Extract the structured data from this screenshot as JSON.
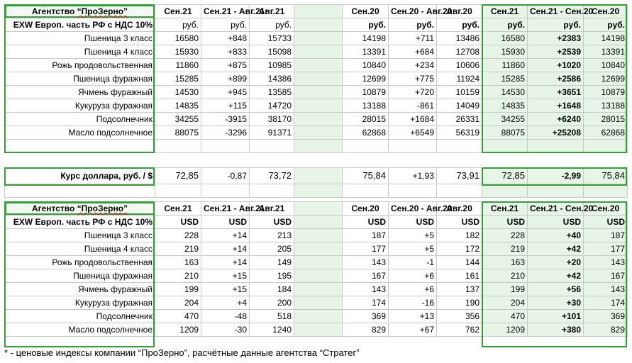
{
  "rub_table": {
    "title_prefix": "Агентство ",
    "title_brand": "“ПроЗерно”",
    "headers": [
      "Сен.21",
      "Сен.21 - Авг.21",
      "Авг.21",
      "",
      "Сен.20",
      "Сен.20 - Авг.20",
      "Авг.20",
      "Сен.21",
      "Сен.21 - Сен.20",
      "Сен.20"
    ],
    "subheader_label": "EXW Европ. часть РФ с НДС 10%",
    "units": [
      "руб.",
      "руб.",
      "руб.",
      "",
      "руб.",
      "руб.",
      "руб.",
      "руб.",
      "руб.",
      "руб."
    ],
    "rows": [
      {
        "name": "Пшеница 3 класс",
        "values": [
          "16580",
          "+848",
          "15733",
          "",
          "14198",
          "+711",
          "13486",
          "16580",
          "+2383",
          "14198"
        ]
      },
      {
        "name": "Пшеница 4 класс",
        "values": [
          "15930",
          "+833",
          "15098",
          "",
          "13391",
          "+684",
          "12708",
          "15930",
          "+2539",
          "13391"
        ]
      },
      {
        "name": "Рожь продовольственная",
        "values": [
          "11860",
          "+875",
          "10985",
          "",
          "10840",
          "+234",
          "10606",
          "11860",
          "+1020",
          "10840"
        ]
      },
      {
        "name": "Пшеница фуражная",
        "values": [
          "15285",
          "+899",
          "14386",
          "",
          "12699",
          "+775",
          "11924",
          "15285",
          "+2586",
          "12699"
        ]
      },
      {
        "name": "Ячмень фуражный",
        "values": [
          "14530",
          "+945",
          "13585",
          "",
          "10879",
          "+720",
          "10159",
          "14530",
          "+3651",
          "10879"
        ]
      },
      {
        "name": "Кукуруза фуражная",
        "values": [
          "14835",
          "+115",
          "14720",
          "",
          "13188",
          "-861",
          "14049",
          "14835",
          "+1648",
          "13188"
        ]
      },
      {
        "name": "Подсолнечник",
        "values": [
          "34255",
          "-3915",
          "38170",
          "",
          "28015",
          "+1684",
          "26331",
          "34255",
          "+6240",
          "28015"
        ]
      },
      {
        "name": "Масло подсолнечное",
        "values": [
          "88075",
          "-3296",
          "91371",
          "",
          "62868",
          "+6549",
          "56319",
          "88075",
          "+25208",
          "62868"
        ]
      }
    ]
  },
  "exchange_rate": {
    "label": "Курс доллара, руб. / $",
    "values": [
      "72,85",
      "-0,87",
      "73,72",
      "",
      "75,84",
      "+1,93",
      "73,91",
      "72,85",
      "-2,99",
      "75,84"
    ]
  },
  "usd_table": {
    "title_prefix": "Агентство ",
    "title_brand": "“ПроЗерно”",
    "headers": [
      "Сен.21",
      "Сен.21 - Авг.21",
      "Авг.21",
      "",
      "Сен.20",
      "Сен.20 - Авг.20",
      "Авг.20",
      "Сен.21",
      "Сен.21 - Сен.20",
      "Сен.20"
    ],
    "subheader_label": "EXW Европ. часть РФ с НДС 10%",
    "units": [
      "USD",
      "USD",
      "USD",
      "",
      "USD",
      "USD",
      "USD",
      "USD",
      "USD",
      "USD"
    ],
    "rows": [
      {
        "name": "Пшеница 3 класс",
        "values": [
          "228",
          "+14",
          "213",
          "",
          "187",
          "+5",
          "182",
          "228",
          "+40",
          "187"
        ]
      },
      {
        "name": "Пшеница 4 класс",
        "values": [
          "219",
          "+14",
          "205",
          "",
          "177",
          "+5",
          "172",
          "219",
          "+42",
          "177"
        ]
      },
      {
        "name": "Рожь продовольственная",
        "values": [
          "163",
          "+14",
          "149",
          "",
          "143",
          "-1",
          "144",
          "163",
          "+20",
          "143"
        ]
      },
      {
        "name": "Пшеница фуражная",
        "values": [
          "210",
          "+15",
          "195",
          "",
          "167",
          "+6",
          "161",
          "210",
          "+42",
          "167"
        ]
      },
      {
        "name": "Ячмень фуражный",
        "values": [
          "199",
          "+15",
          "184",
          "",
          "143",
          "+6",
          "137",
          "199",
          "+56",
          "143"
        ]
      },
      {
        "name": "Кукуруза фуражная",
        "values": [
          "204",
          "+4",
          "200",
          "",
          "174",
          "-16",
          "190",
          "204",
          "+30",
          "174"
        ]
      },
      {
        "name": "Подсолнечник",
        "values": [
          "470",
          "-48",
          "518",
          "",
          "369",
          "+13",
          "356",
          "470",
          "+101",
          "369"
        ]
      },
      {
        "name": "Масло подсолнечное",
        "values": [
          "1209",
          "-30",
          "1240",
          "",
          "829",
          "+67",
          "762",
          "1209",
          "+380",
          "829"
        ]
      }
    ]
  },
  "footnote": "* - ценовые индексы компании “ПроЗерно”, расчётные данные агентства “Стратег”",
  "colors": {
    "accent_green": "#35a035",
    "positive": "#1e9a1e",
    "negative": "#e03010",
    "green_fill": "#e7f5e7"
  }
}
